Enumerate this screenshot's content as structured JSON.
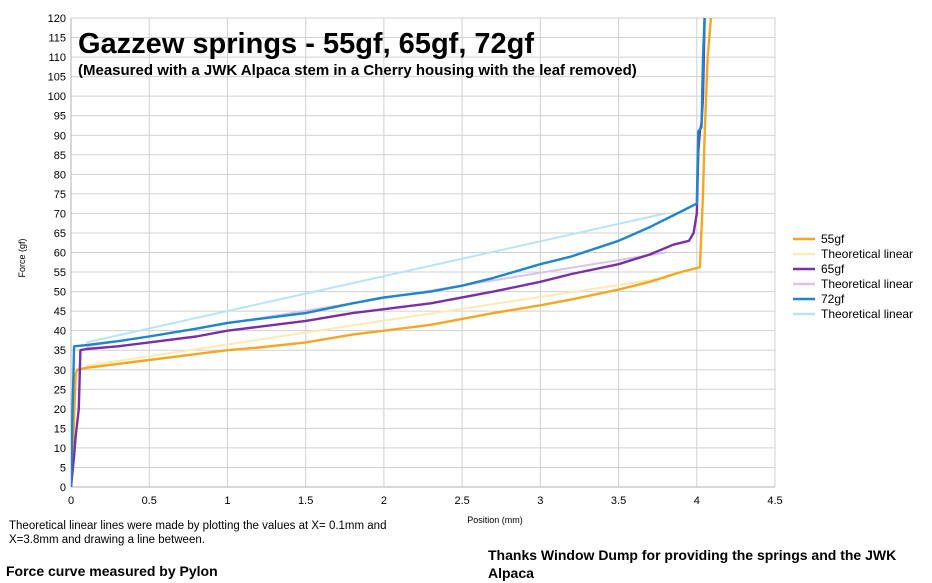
{
  "chart_data": {
    "type": "line",
    "title": "Gazzew springs - 55gf, 65gf, 72gf",
    "subtitle": "(Measured with a JWK Alpaca stem in a Cherry housing with the leaf removed)",
    "xlabel": "Position (mm)",
    "ylabel": "Force (gf)",
    "xlim": [
      0,
      4.5
    ],
    "ylim": [
      0,
      120
    ],
    "x_ticks": [
      "0",
      "0.5",
      "1",
      "1.5",
      "2",
      "2.5",
      "3",
      "3.5",
      "4",
      "4.5"
    ],
    "y_ticks": [
      "0",
      "5",
      "10",
      "15",
      "20",
      "25",
      "30",
      "35",
      "40",
      "45",
      "50",
      "55",
      "60",
      "65",
      "70",
      "75",
      "80",
      "85",
      "90",
      "95",
      "100",
      "105",
      "110",
      "115",
      "120"
    ],
    "grid": true,
    "legend_position": "right",
    "series": [
      {
        "name": "55gf",
        "color": "#f5a623",
        "kind": "measured",
        "points": [
          [
            0,
            0
          ],
          [
            0.01,
            6
          ],
          [
            0.02,
            18
          ],
          [
            0.03,
            29
          ],
          [
            0.04,
            30
          ],
          [
            0.1,
            30.5
          ],
          [
            0.3,
            31.5
          ],
          [
            0.5,
            32.5
          ],
          [
            0.8,
            34
          ],
          [
            1.0,
            35
          ],
          [
            1.2,
            35.7
          ],
          [
            1.5,
            37
          ],
          [
            1.8,
            39
          ],
          [
            2.0,
            40
          ],
          [
            2.3,
            41.5
          ],
          [
            2.5,
            43
          ],
          [
            2.7,
            44.5
          ],
          [
            3.0,
            46.5
          ],
          [
            3.2,
            48
          ],
          [
            3.5,
            50.5
          ],
          [
            3.7,
            52.5
          ],
          [
            3.9,
            55
          ],
          [
            4.0,
            56
          ],
          [
            4.02,
            56.3
          ],
          [
            4.04,
            75
          ],
          [
            4.05,
            90
          ],
          [
            4.07,
            110
          ],
          [
            4.09,
            120
          ]
        ]
      },
      {
        "name": "Theoretical linear",
        "color": "#fde9b5",
        "kind": "theoretical",
        "points": [
          [
            0.1,
            31
          ],
          [
            3.8,
            53.5
          ]
        ]
      },
      {
        "name": "65gf",
        "color": "#7b2fa6",
        "kind": "measured",
        "points": [
          [
            0,
            0
          ],
          [
            0.02,
            8
          ],
          [
            0.03,
            13
          ],
          [
            0.05,
            20
          ],
          [
            0.06,
            35
          ],
          [
            0.1,
            35.3
          ],
          [
            0.3,
            36
          ],
          [
            0.5,
            37
          ],
          [
            0.8,
            38.5
          ],
          [
            1.0,
            40
          ],
          [
            1.2,
            41
          ],
          [
            1.5,
            42.5
          ],
          [
            1.8,
            44.5
          ],
          [
            2.0,
            45.5
          ],
          [
            2.3,
            47
          ],
          [
            2.5,
            48.5
          ],
          [
            2.7,
            50
          ],
          [
            3.0,
            52.5
          ],
          [
            3.2,
            54.5
          ],
          [
            3.5,
            57
          ],
          [
            3.7,
            59.5
          ],
          [
            3.85,
            62
          ],
          [
            3.95,
            63
          ],
          [
            3.98,
            65
          ],
          [
            4.0,
            70
          ],
          [
            4.01,
            86
          ],
          [
            4.02,
            91
          ],
          [
            4.03,
            93
          ],
          [
            4.04,
            100
          ],
          [
            4.05,
            120
          ]
        ]
      },
      {
        "name": "Theoretical linear",
        "color": "#d9c3e8",
        "kind": "theoretical",
        "points": [
          [
            0.1,
            36
          ],
          [
            3.8,
            60
          ]
        ]
      },
      {
        "name": "72gf",
        "color": "#1f86c8",
        "kind": "measured",
        "points": [
          [
            0,
            0
          ],
          [
            0.01,
            20
          ],
          [
            0.02,
            36
          ],
          [
            0.1,
            36.3
          ],
          [
            0.3,
            37.3
          ],
          [
            0.5,
            38.5
          ],
          [
            0.8,
            40.5
          ],
          [
            1.0,
            42
          ],
          [
            1.2,
            43
          ],
          [
            1.5,
            44.5
          ],
          [
            1.8,
            47
          ],
          [
            2.0,
            48.5
          ],
          [
            2.3,
            50
          ],
          [
            2.5,
            51.5
          ],
          [
            2.7,
            53.5
          ],
          [
            3.0,
            57
          ],
          [
            3.2,
            59
          ],
          [
            3.5,
            63
          ],
          [
            3.7,
            66.5
          ],
          [
            3.9,
            70.5
          ],
          [
            4.0,
            72.5
          ],
          [
            4.01,
            91
          ],
          [
            4.03,
            92
          ],
          [
            4.04,
            110
          ],
          [
            4.05,
            120
          ]
        ]
      },
      {
        "name": "Theoretical linear",
        "color": "#b9e4f6",
        "kind": "theoretical",
        "points": [
          [
            0.1,
            37
          ],
          [
            3.8,
            70
          ]
        ]
      }
    ]
  },
  "notes": {
    "theoretical": "Theoretical linear lines were made by plotting the values at X= 0.1mm and X=3.8mm and drawing a line between.",
    "credit": "Force curve measured by Pylon",
    "thanks": "Thanks Window Dump for providing the springs and the JWK Alpaca"
  }
}
